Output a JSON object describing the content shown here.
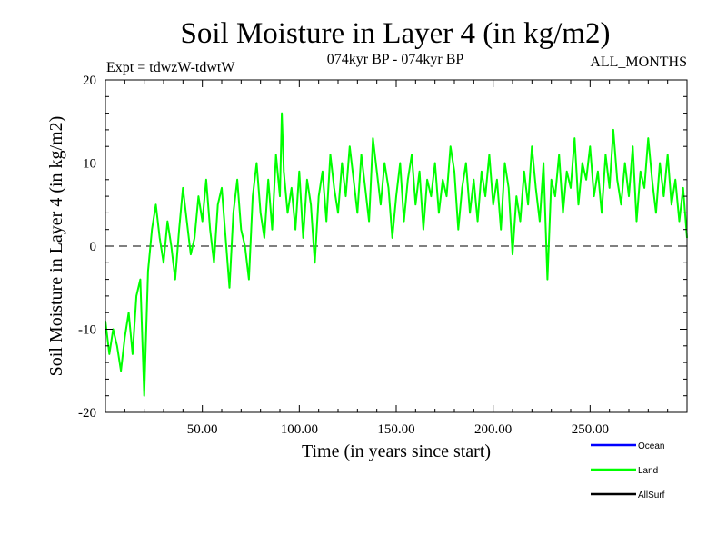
{
  "chart_data": {
    "type": "line",
    "title": "Soil Moisture in Layer 4 (in kg/m2)",
    "subtitle_left": "Expt = tdwzW-tdwtW",
    "subtitle_center": "074kyr BP - 074kyr BP",
    "subtitle_right": "ALL_MONTHS",
    "xlabel": "Time (in years since start)",
    "ylabel": "Soil Moisture in Layer 4 (in kg/m2)",
    "xlim": [
      0,
      300
    ],
    "ylim": [
      -20,
      20
    ],
    "x_ticks": [
      {
        "value": 50,
        "label": "50.00"
      },
      {
        "value": 100,
        "label": "100.00"
      },
      {
        "value": 150,
        "label": "150.00"
      },
      {
        "value": 200,
        "label": "200.00"
      },
      {
        "value": 250,
        "label": "250.00"
      }
    ],
    "y_ticks": [
      {
        "value": -20,
        "label": "-20"
      },
      {
        "value": -10,
        "label": "-10"
      },
      {
        "value": 0,
        "label": "0"
      },
      {
        "value": 10,
        "label": "10"
      },
      {
        "value": 20,
        "label": "20"
      }
    ],
    "zero_line": true,
    "legend": [
      {
        "name": "Ocean",
        "color": "#0000ff"
      },
      {
        "name": "Land",
        "color": "#00ff00"
      },
      {
        "name": "AllSurf",
        "color": "#000000"
      }
    ],
    "series": [
      {
        "name": "Land",
        "color": "#00ff00",
        "x": [
          0,
          2,
          4,
          6,
          8,
          10,
          12,
          14,
          16,
          18,
          20,
          22,
          24,
          26,
          28,
          30,
          32,
          34,
          36,
          38,
          40,
          42,
          44,
          46,
          48,
          50,
          52,
          54,
          56,
          58,
          60,
          62,
          64,
          66,
          68,
          70,
          72,
          74,
          76,
          78,
          80,
          82,
          84,
          86,
          88,
          90,
          91,
          92,
          94,
          96,
          98,
          100,
          102,
          104,
          106,
          108,
          110,
          112,
          114,
          116,
          118,
          120,
          122,
          124,
          126,
          128,
          130,
          132,
          134,
          136,
          138,
          140,
          142,
          144,
          146,
          148,
          150,
          152,
          154,
          156,
          158,
          160,
          162,
          164,
          166,
          168,
          170,
          172,
          174,
          176,
          178,
          180,
          182,
          184,
          186,
          188,
          190,
          192,
          194,
          196,
          198,
          200,
          202,
          204,
          206,
          208,
          210,
          212,
          214,
          216,
          218,
          220,
          222,
          224,
          226,
          228,
          230,
          232,
          234,
          236,
          238,
          240,
          242,
          244,
          246,
          248,
          250,
          252,
          254,
          256,
          258,
          260,
          262,
          264,
          266,
          268,
          270,
          272,
          274,
          276,
          278,
          280,
          282,
          284,
          286,
          288,
          290,
          292,
          294,
          296,
          298,
          300
        ],
        "values": [
          -9,
          -13,
          -10,
          -12,
          -15,
          -11,
          -8,
          -13,
          -6,
          -4,
          -18,
          -3,
          2,
          5,
          1,
          -2,
          3,
          0,
          -4,
          2,
          7,
          3,
          -1,
          1,
          6,
          3,
          8,
          2,
          -2,
          5,
          7,
          1,
          -5,
          4,
          8,
          2,
          0,
          -4,
          6,
          10,
          4,
          1,
          8,
          2,
          11,
          6,
          16,
          9,
          4,
          7,
          2,
          9,
          1,
          8,
          5,
          -2,
          6,
          9,
          3,
          11,
          7,
          4,
          10,
          6,
          12,
          8,
          4,
          11,
          7,
          3,
          13,
          9,
          5,
          10,
          7,
          1,
          6,
          10,
          3,
          8,
          11,
          5,
          9,
          2,
          8,
          6,
          10,
          4,
          8,
          6,
          12,
          9,
          2,
          7,
          10,
          4,
          8,
          3,
          9,
          6,
          11,
          5,
          8,
          2,
          10,
          7,
          -1,
          6,
          3,
          9,
          5,
          12,
          7,
          3,
          10,
          -4,
          8,
          6,
          11,
          4,
          9,
          7,
          13,
          5,
          10,
          8,
          12,
          6,
          9,
          4,
          11,
          7,
          14,
          8,
          5,
          10,
          6,
          12,
          3,
          9,
          7,
          13,
          8,
          4,
          10,
          6,
          11,
          5,
          8,
          3,
          7,
          1
        ]
      }
    ]
  }
}
